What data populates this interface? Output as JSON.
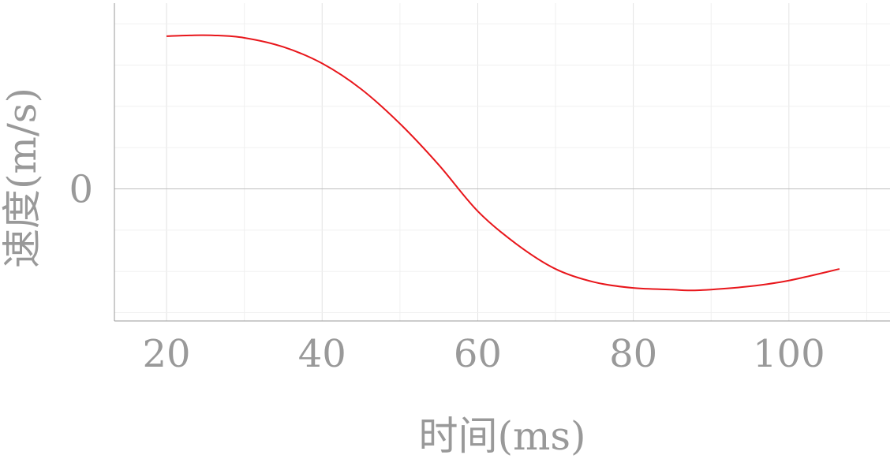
{
  "chart_data": {
    "type": "line",
    "xlabel": "时间(ms)",
    "ylabel": "速度(m/s)",
    "xlim": [
      13.3,
      113.0
    ],
    "ylim": [
      -1.6,
      2.25
    ],
    "x_ticks": [
      20,
      40,
      60,
      80,
      100
    ],
    "y_ticks": [
      0
    ],
    "grid": true,
    "line_color": "#e8161b",
    "series": [
      {
        "x": [
          20,
          23,
          26,
          30,
          35,
          40,
          45,
          50,
          55,
          60,
          65,
          70,
          75,
          80,
          85,
          87,
          90,
          95,
          100,
          106.5
        ],
        "values": [
          1.85,
          1.86,
          1.86,
          1.83,
          1.72,
          1.52,
          1.21,
          0.79,
          0.29,
          -0.27,
          -0.67,
          -0.97,
          -1.13,
          -1.2,
          -1.22,
          -1.23,
          -1.22,
          -1.18,
          -1.11,
          -0.97
        ]
      }
    ]
  }
}
